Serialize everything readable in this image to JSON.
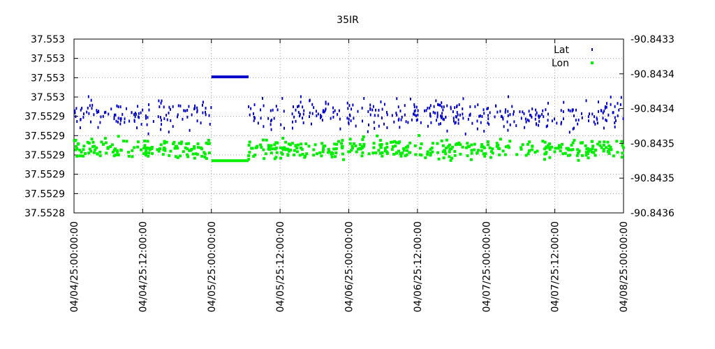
{
  "chart_data": {
    "type": "scatter",
    "title": "35IR",
    "xlabel": "",
    "ylabel": "",
    "y2label": "",
    "x_tick_labels": [
      "04/04/25:00:00:00",
      "04/04/25:12:00:00",
      "04/05/25:00:00:00",
      "04/05/25:12:00:00",
      "04/06/25:00:00:00",
      "04/06/25:12:00:00",
      "04/07/25:00:00:00",
      "04/07/25:12:00:00",
      "04/08/25:00:00:00"
    ],
    "x_range_hours": [
      0,
      96
    ],
    "y_left_tick_labels": [
      "37.5528",
      "37.5529",
      "37.5529",
      "37.5529",
      "37.5529",
      "37.5529",
      "37.553",
      "37.553",
      "37.553",
      "37.553"
    ],
    "y_right_tick_labels": [
      "-90.8436",
      "-90.8435",
      "-90.8435",
      "-90.8434",
      "-90.8434",
      "-90.8433"
    ],
    "grid": true,
    "legend_position": "top-right",
    "series": [
      {
        "name": "Lat",
        "color": "#0000cc",
        "axis": "left",
        "note": "scattered points, 04/04 00:00 to 04/08 00:00; flat run at ~37.553 from 04/05 00:00 to 04/05 06:30",
        "gap_value": 37.553
      },
      {
        "name": "Lon",
        "color": "#00ee00",
        "axis": "right",
        "note": "scattered points around -90.84349; flat run at ~-90.84351 from 04/05 00:00 to 04/05 06:30",
        "gap_value": -90.84351
      }
    ]
  }
}
